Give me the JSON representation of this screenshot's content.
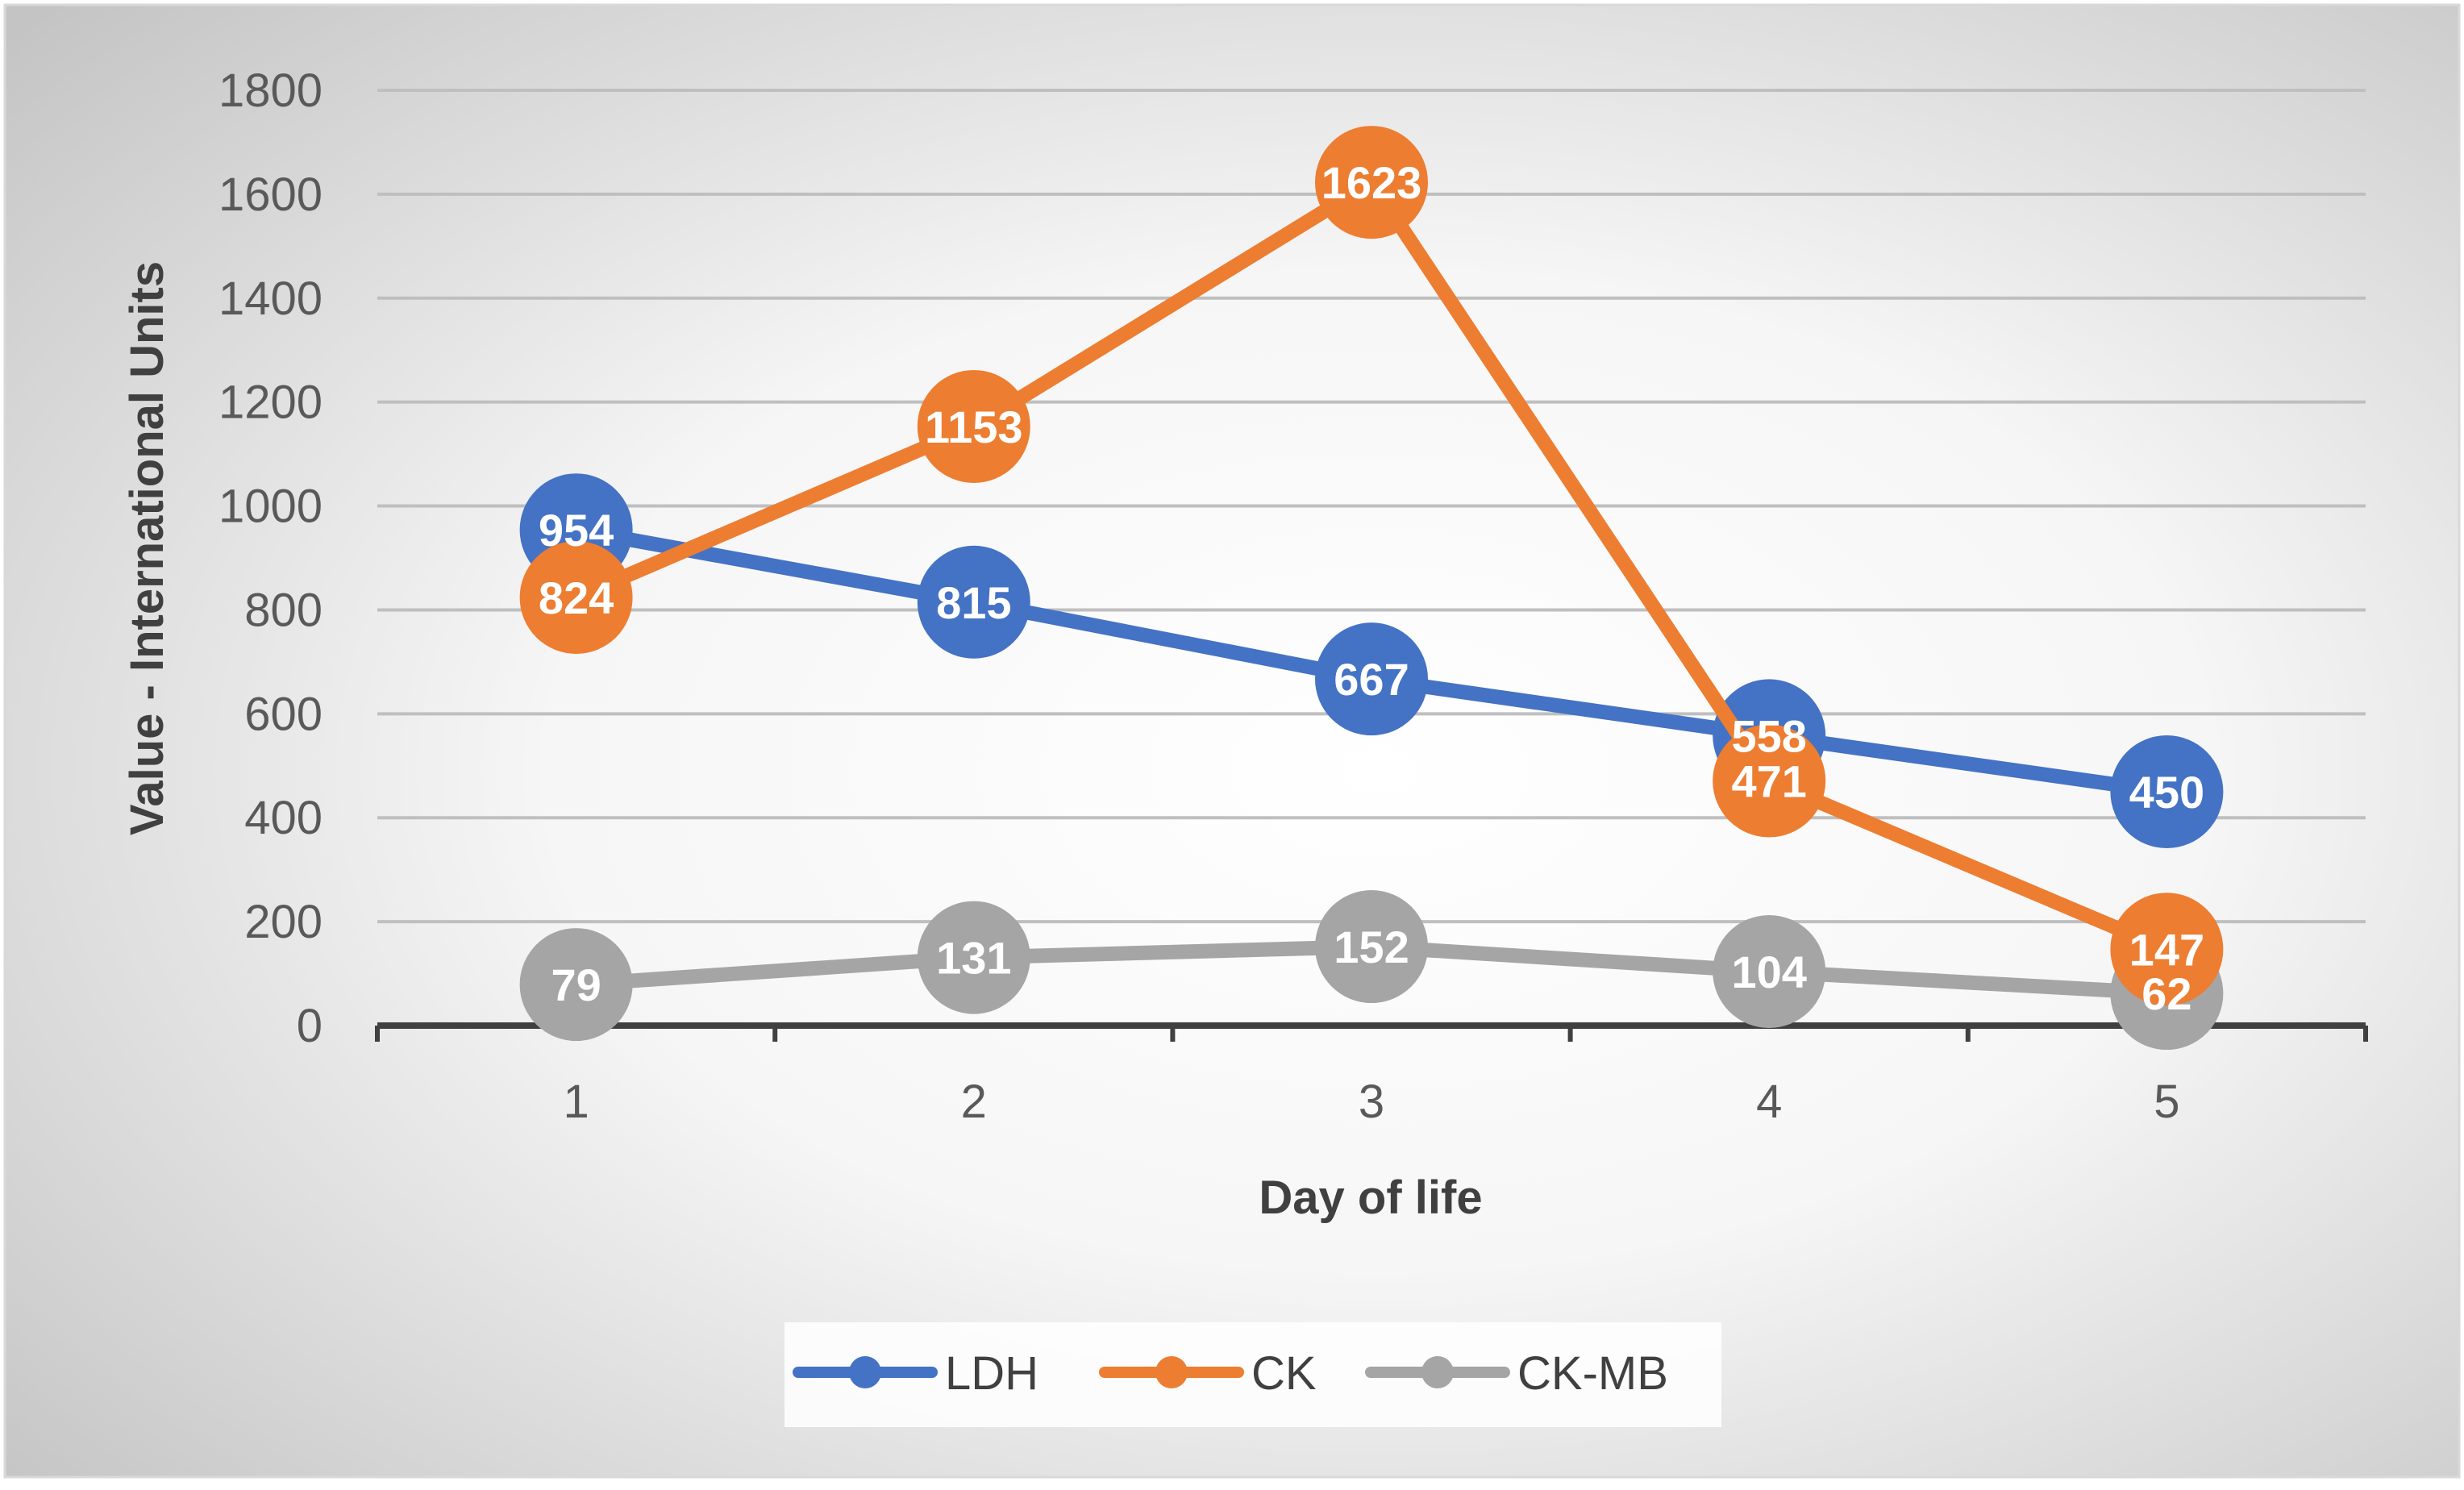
{
  "colors": {
    "LDH": "#4472C4",
    "CK": "#ED7D31",
    "CK-MB": "#A5A5A5",
    "gridline": "#BFBFBF",
    "axis": "#404040",
    "plot_border": "#D9D9D9"
  },
  "chart_data": {
    "type": "line",
    "title": "",
    "xlabel": "Day of life",
    "ylabel": "Value - International Units",
    "categories": [
      "1",
      "2",
      "3",
      "4",
      "5"
    ],
    "ylim": [
      0,
      1800
    ],
    "yticks": [
      0,
      200,
      400,
      600,
      800,
      1000,
      1200,
      1400,
      1600,
      1800
    ],
    "grid": true,
    "legend_position": "bottom",
    "data_labels": true,
    "series": [
      {
        "name": "LDH",
        "values": [
          954,
          815,
          667,
          558,
          450
        ]
      },
      {
        "name": "CK",
        "values": [
          824,
          1153,
          1623,
          471,
          147
        ]
      },
      {
        "name": "CK-MB",
        "values": [
          79,
          131,
          152,
          104,
          62
        ]
      }
    ]
  }
}
